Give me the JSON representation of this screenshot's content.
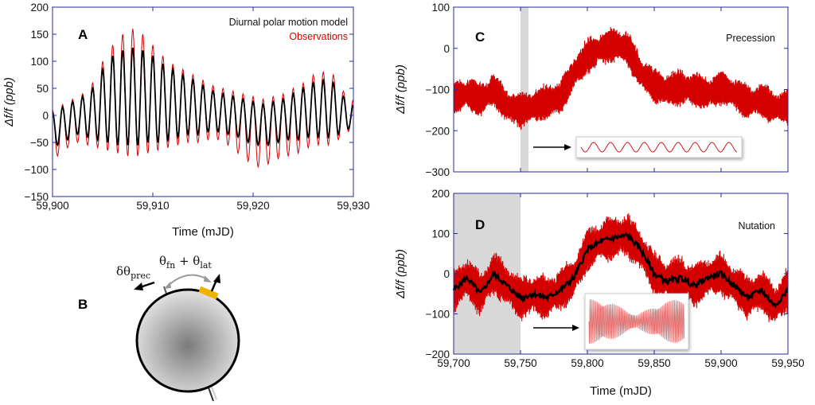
{
  "colors": {
    "model": "#000000",
    "observations": "#d40000",
    "frame": "#2a2a9a",
    "shade": "#d8d8d8",
    "highlight": "#f0b400"
  },
  "panels": {
    "A": "A",
    "B": "B",
    "C": "C",
    "D": "D"
  },
  "panel_b": {
    "left_symbol": "δθ",
    "left_sub": "prec",
    "right_symbol_1": "θ",
    "right_sub_1": "fn",
    "plus": " + ",
    "right_symbol_2": "θ",
    "right_sub_2": "lat"
  },
  "chart_data": [
    {
      "id": "A",
      "type": "line",
      "xlabel": "Time (mJD)",
      "ylabel": "Δf/f (ppb)",
      "xlim": [
        59900,
        59930
      ],
      "ylim": [
        -150,
        200
      ],
      "xticks": [
        59900,
        59910,
        59920,
        59930
      ],
      "xtick_labels": [
        "59,900",
        "59,910",
        "59,920",
        "59,930"
      ],
      "yticks": [
        -150,
        -100,
        -50,
        0,
        50,
        100,
        150,
        200
      ],
      "ytick_labels": [
        "−150",
        "−100",
        "−50",
        "0",
        "50",
        "100",
        "150",
        "200"
      ],
      "legend": [
        "Diurnal polar motion model",
        "Observations"
      ],
      "legend_position": "top-right",
      "series": [
        {
          "name": "Diurnal polar motion model",
          "x": [
            59900.0,
            59900.5,
            59901.0,
            59901.5,
            59902.0,
            59902.5,
            59903.0,
            59903.5,
            59904.0,
            59904.5,
            59905.0,
            59905.5,
            59906.0,
            59906.5,
            59907.0,
            59907.5,
            59908.0,
            59908.5,
            59909.0,
            59909.5,
            59910.0,
            59910.5,
            59911.0,
            59911.5,
            59912.0,
            59912.5,
            59913.0,
            59913.5,
            59914.0,
            59914.5,
            59915.0,
            59915.5,
            59916.0,
            59916.5,
            59917.0,
            59917.5,
            59918.0,
            59918.5,
            59919.0,
            59919.5,
            59920.0,
            59920.5,
            59921.0,
            59921.5,
            59922.0,
            59922.5,
            59923.0,
            59923.5,
            59924.0,
            59924.5,
            59925.0,
            59925.5,
            59926.0,
            59926.5,
            59927.0,
            59927.5,
            59928.0,
            59928.5,
            59929.0,
            59929.5,
            59930.0
          ],
          "y": [
            5,
            -55,
            15,
            -45,
            25,
            -35,
            35,
            -40,
            50,
            -45,
            85,
            -50,
            110,
            -55,
            120,
            -55,
            125,
            -55,
            120,
            -50,
            110,
            -50,
            95,
            -45,
            85,
            -40,
            75,
            -35,
            65,
            -35,
            55,
            -30,
            45,
            -30,
            40,
            -35,
            35,
            -40,
            30,
            -50,
            25,
            -55,
            20,
            -55,
            25,
            -50,
            30,
            -45,
            40,
            -45,
            50,
            -40,
            60,
            -40,
            65,
            -40,
            60,
            -35,
            35,
            -25,
            20
          ]
        },
        {
          "name": "Observations",
          "x": [
            59900.0,
            59900.5,
            59901.0,
            59901.5,
            59902.0,
            59902.5,
            59903.0,
            59903.5,
            59904.0,
            59904.5,
            59905.0,
            59905.5,
            59906.0,
            59906.5,
            59907.0,
            59907.5,
            59908.0,
            59908.5,
            59909.0,
            59909.5,
            59910.0,
            59910.5,
            59911.0,
            59911.5,
            59912.0,
            59912.5,
            59913.0,
            59913.5,
            59914.0,
            59914.5,
            59915.0,
            59915.5,
            59916.0,
            59916.5,
            59917.0,
            59917.5,
            59918.0,
            59918.5,
            59919.0,
            59919.5,
            59920.0,
            59920.5,
            59921.0,
            59921.5,
            59922.0,
            59922.5,
            59923.0,
            59923.5,
            59924.0,
            59924.5,
            59925.0,
            59925.5,
            59926.0,
            59926.5,
            59927.0,
            59927.5,
            59928.0,
            59928.5,
            59929.0,
            59929.5,
            59930.0
          ],
          "y": [
            10,
            -75,
            20,
            -60,
            30,
            -50,
            40,
            -55,
            60,
            -60,
            100,
            -65,
            130,
            -70,
            150,
            -75,
            160,
            -75,
            150,
            -70,
            130,
            -65,
            110,
            -60,
            95,
            -55,
            85,
            -50,
            75,
            -50,
            65,
            -45,
            55,
            -45,
            50,
            -55,
            45,
            -70,
            40,
            -85,
            35,
            -95,
            30,
            -90,
            35,
            -80,
            40,
            -75,
            50,
            -70,
            60,
            -60,
            75,
            -55,
            80,
            -55,
            75,
            -45,
            45,
            -30,
            30
          ]
        }
      ]
    },
    {
      "id": "C",
      "type": "line",
      "xlabel": "",
      "ylabel": "Δf/f (ppb)",
      "xlim": [
        59700,
        59950
      ],
      "ylim": [
        -300,
        100
      ],
      "yticks": [
        -300,
        -200,
        -100,
        0,
        100
      ],
      "ytick_labels": [
        "−300",
        "−200",
        "−100",
        "0",
        "100"
      ],
      "annotation": "Precession",
      "shaded_x": [
        59750,
        59756
      ],
      "series": [
        {
          "name": "",
          "x": [
            59700,
            59710,
            59720,
            59730,
            59740,
            59750,
            59760,
            59770,
            59780,
            59790,
            59800,
            59810,
            59820,
            59830,
            59840,
            59850,
            59860,
            59870,
            59880,
            59890,
            59900,
            59910,
            59920,
            59930,
            59940,
            59950
          ],
          "y": [
            -120,
            -110,
            -125,
            -100,
            -140,
            -150,
            -140,
            -130,
            -120,
            -60,
            -20,
            0,
            10,
            0,
            -60,
            -90,
            -100,
            -95,
            -100,
            -110,
            -95,
            -110,
            -130,
            -125,
            -145,
            -140
          ],
          "noise_amplitude": 35
        }
      ]
    },
    {
      "id": "D",
      "type": "line",
      "xlabel": "Time (mJD)",
      "ylabel": "Δf/f (ppb)",
      "xlim": [
        59700,
        59950
      ],
      "ylim": [
        -200,
        200
      ],
      "xticks": [
        59700,
        59750,
        59800,
        59850,
        59900,
        59950
      ],
      "xtick_labels": [
        "59,700",
        "59,750",
        "59,800",
        "59,850",
        "59,900",
        "59,950"
      ],
      "yticks": [
        -200,
        -100,
        0,
        100,
        200
      ],
      "ytick_labels": [
        "−200",
        "−100",
        "0",
        "100",
        "200"
      ],
      "annotation": "Nutation",
      "shaded_x": [
        59700,
        59750
      ],
      "series": [
        {
          "name": "",
          "x": [
            59700,
            59710,
            59720,
            59730,
            59740,
            59750,
            59760,
            59770,
            59780,
            59790,
            59800,
            59810,
            59820,
            59830,
            59840,
            59850,
            59860,
            59870,
            59880,
            59890,
            59900,
            59910,
            59920,
            59930,
            59940,
            59950
          ],
          "y": [
            -40,
            -10,
            -50,
            0,
            -30,
            -60,
            -50,
            -60,
            -40,
            -10,
            60,
            80,
            90,
            95,
            60,
            0,
            -20,
            -10,
            -30,
            -10,
            0,
            -30,
            -60,
            -40,
            -80,
            -40
          ],
          "noise_amplitude": 45,
          "mean_color": "#000000"
        }
      ]
    }
  ]
}
